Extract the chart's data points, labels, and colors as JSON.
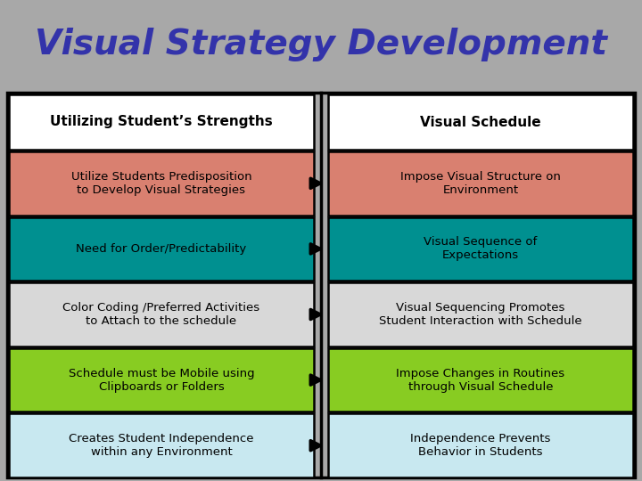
{
  "title": "Visual Strategy Development",
  "title_color": "#3333AA",
  "title_bg": "#A8A8A8",
  "title_fontsize": 28,
  "header_left": "Utilizing Student’s Strengths",
  "header_right": "Visual Schedule",
  "header_bg": "#FFFFFF",
  "rows": [
    {
      "left": "Utilize Students Predisposition\nto Develop Visual Strategies",
      "right": "Impose Visual Structure on\nEnvironment",
      "bg": "#D98070",
      "text_color": "#000000"
    },
    {
      "left": "Need for Order/Predictability",
      "right": "Visual Sequence of\nExpectations",
      "bg": "#009090",
      "text_color": "#000000"
    },
    {
      "left": "Color Coding /Preferred Activities\nto Attach to the schedule",
      "right": "Visual Sequencing Promotes\nStudent Interaction with Schedule",
      "bg": "#D8D8D8",
      "text_color": "#000000"
    },
    {
      "left": "Schedule must be Mobile using\nClipboards or Folders",
      "right": "Impose Changes in Routines\nthrough Visual Schedule",
      "bg": "#88CC22",
      "text_color": "#000000"
    },
    {
      "left": "Creates Student Independence\nwithin any Environment",
      "right": "Independence Prevents\nBehavior in Students",
      "bg": "#C8E8F0",
      "text_color": "#000000"
    }
  ],
  "fig_bg": "#A8A8A8",
  "border_color": "#000000",
  "content_bg": "#A8A8A8"
}
